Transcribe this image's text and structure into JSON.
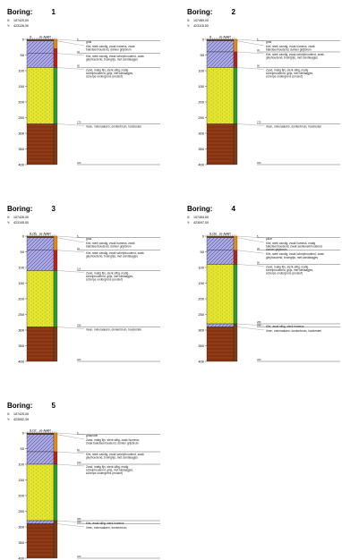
{
  "labels": {
    "boring_prefix": "Boring:",
    "x_prefix": "X:",
    "y_prefix": "Y:",
    "nap_unit": "m-NAP"
  },
  "colors": {
    "clay": "#a9a8e0",
    "clay_hatch": "#3b3b9a",
    "sand": "#e3e52f",
    "sand_dot": "#6b6a20",
    "peat": "#8f3a14",
    "peat_line": "#5a2208",
    "side_green": "#2d9b2d",
    "side_orange": "#e08a1c",
    "side_red": "#b4221a",
    "side_brown": "#7a3a1a",
    "top_soil": "#6a4a2a",
    "line": "#222222"
  },
  "depth_axis": {
    "ticks": [
      "0",
      "50",
      "100",
      "150",
      "200",
      "250",
      "300",
      "350",
      "400"
    ],
    "max_cm": 400
  },
  "borings": [
    {
      "number": "1",
      "x": "107420,00",
      "y": "423126,00",
      "nap_value": "0",
      "layers": [
        {
          "type": "topsoil",
          "from": 0,
          "to": 5,
          "depth_label": "5",
          "description": "gras"
        },
        {
          "type": "clay",
          "from": 5,
          "to": 45,
          "depth_label": "45",
          "description": "Klei, sterk zandig, zwak humeus, zwak baksteenhoudend, donker grijsbruin"
        },
        {
          "type": "clay",
          "from": 45,
          "to": 90,
          "depth_label": "90",
          "description": "Klei, sterk zandig, zwak schelphoudend, zwak gleyhoudend, bruingrijs, met zandlaagjes"
        },
        {
          "type": "sand",
          "from": 90,
          "to": 270,
          "depth_label": "270",
          "description": "Zand, matig fijn, sterk siltig, matig schelphoudend, grijs, met kleilaagjes, scherpe ondergrens (erosief)"
        },
        {
          "type": "peat",
          "from": 270,
          "to": 400,
          "depth_label": "400",
          "description": "Veen, mineraalarm, donkerbruin, houtresten"
        }
      ],
      "side": [
        {
          "color_key": "side_orange",
          "from": 0,
          "to": 30
        },
        {
          "color_key": "side_red",
          "from": 30,
          "to": 90
        },
        {
          "color_key": "side_green",
          "from": 90,
          "to": 270
        },
        {
          "color_key": "side_brown",
          "from": 270,
          "to": 400
        }
      ]
    },
    {
      "number": "2",
      "x": "107469,00",
      "y": "423116,00",
      "nap_value": "0",
      "layers": [
        {
          "type": "topsoil",
          "from": 0,
          "to": 5,
          "depth_label": "5",
          "description": "gras"
        },
        {
          "type": "clay",
          "from": 5,
          "to": 40,
          "depth_label": "40",
          "description": "Klei, sterk zandig, zwak humeus, zwak baksteenhoudend, donker grijsbruin"
        },
        {
          "type": "clay",
          "from": 40,
          "to": 90,
          "depth_label": "90",
          "description": "Klei, sterk zandig, zwak schelphoudend, zwak gleyhoudend, bruingrijs, met zandlaagjes"
        },
        {
          "type": "sand",
          "from": 90,
          "to": 270,
          "depth_label": "270",
          "description": "Zand, matig fijn, sterk siltig, matig schelphoudend, grijs, met kleilaagjes, scherpe ondergrens (erosief)"
        },
        {
          "type": "peat",
          "from": 270,
          "to": 400,
          "depth_label": "400",
          "description": "Veen, mineraalarm, donkerbruin, houtresten"
        }
      ],
      "side": [
        {
          "color_key": "side_orange",
          "from": 0,
          "to": 40
        },
        {
          "color_key": "side_red",
          "from": 40,
          "to": 90
        },
        {
          "color_key": "side_green",
          "from": 90,
          "to": 270
        },
        {
          "color_key": "side_brown",
          "from": 270,
          "to": 400
        }
      ]
    },
    {
      "number": "3",
      "x": "107426,00",
      "y": "423105,00",
      "nap_value": "0,05",
      "layers": [
        {
          "type": "topsoil",
          "from": 0,
          "to": 5,
          "depth_label": "5",
          "description": "gras"
        },
        {
          "type": "clay",
          "from": 5,
          "to": 45,
          "depth_label": "45",
          "description": "Klei, sterk zandig, zwak humeus, zwak baksteenhoudend, donker grijsbruin"
        },
        {
          "type": "clay",
          "from": 45,
          "to": 110,
          "depth_label": "110",
          "description": "Klei, sterk zandig, zwak schelphoudend, zwak gleyhoudend, bruingrijs, met zandlaagjes"
        },
        {
          "type": "sand",
          "from": 110,
          "to": 290,
          "depth_label": "290",
          "description": "Zand, matig fijn, sterk siltig, matig schelphoudend, grijs, met kleilaagjes, scherpe ondergrens (erosief)"
        },
        {
          "type": "peat",
          "from": 290,
          "to": 400,
          "depth_label": "400",
          "description": "Veen, mineraalarm, donkerbruin, houtresten"
        }
      ],
      "side": [
        {
          "color_key": "side_orange",
          "from": 0,
          "to": 45
        },
        {
          "color_key": "side_red",
          "from": 45,
          "to": 110
        },
        {
          "color_key": "side_green",
          "from": 110,
          "to": 290
        },
        {
          "color_key": "side_brown",
          "from": 290,
          "to": 400
        }
      ]
    },
    {
      "number": "4",
      "x": "107454,00",
      "y": "423097,00",
      "nap_value": "0,09",
      "layers": [
        {
          "type": "topsoil",
          "from": 0,
          "to": 5,
          "depth_label": "5",
          "description": "plkar"
        },
        {
          "type": "clay",
          "from": 5,
          "to": 45,
          "depth_label": "45",
          "description": "Klei, sterk zandig, zwak humeus, matig baksteenhoudend, zwak aardewerkhoudend, donker grijsbruin"
        },
        {
          "type": "clay",
          "from": 45,
          "to": 90,
          "depth_label": "90",
          "description": "Klei, sterk zandig, zwak schelphoudend, zwak gleyhoudend, bruingrijs, met zandlaagjes"
        },
        {
          "type": "sand",
          "from": 90,
          "to": 280,
          "depth_label": "280",
          "description": "Zand, matig fijn, sterk siltig, matig schelphoudend, grijs, met kleilaagjes, scherpe ondergrens (erosief)"
        },
        {
          "type": "clay",
          "from": 280,
          "to": 290,
          "depth_label": "290",
          "description": "Klei, zwak siltig, sterk humeus"
        },
        {
          "type": "peat",
          "from": 290,
          "to": 400,
          "depth_label": "400",
          "description": "Veen, mineraalarm, donkerbruin, houtresten"
        }
      ],
      "side": [
        {
          "color_key": "side_orange",
          "from": 0,
          "to": 45
        },
        {
          "color_key": "side_red",
          "from": 45,
          "to": 90
        },
        {
          "color_key": "side_green",
          "from": 90,
          "to": 280
        },
        {
          "color_key": "side_brown",
          "from": 280,
          "to": 400
        }
      ]
    },
    {
      "number": "5",
      "x": "107425,00",
      "y": "423052,39",
      "nap_value": "0,07",
      "layers": [
        {
          "type": "topsoil",
          "from": 0,
          "to": 5,
          "depth_label": "5",
          "description": "graszode"
        },
        {
          "type": "clay",
          "from": 5,
          "to": 60,
          "depth_label": "60",
          "description": "Zand, matig fijn, sterk siltig, zwak humeus, zwak baksteenhoudend, donker grijsbruin"
        },
        {
          "type": "clay",
          "from": 60,
          "to": 100,
          "depth_label": "100",
          "description": "Klei, sterk zandig, zwak schelphoudend, zwak gleyhoudend, bruingrijs, met zandlaagjes"
        },
        {
          "type": "sand",
          "from": 100,
          "to": 280,
          "depth_label": "280",
          "description": "Zand, matig fijn, sterk siltig, matig schelphoudend, grijs, met kleilaagjes, scherpe ondergrens (erosief)"
        },
        {
          "type": "clay",
          "from": 280,
          "to": 290,
          "depth_label": "290",
          "description": "Klei, zwak siltig, sterk humeus"
        },
        {
          "type": "peat",
          "from": 290,
          "to": 400,
          "depth_label": "400",
          "description": "Veen, mineraalarm, donkerbruin"
        }
      ],
      "side": [
        {
          "color_key": "side_orange",
          "from": 0,
          "to": 60
        },
        {
          "color_key": "side_red",
          "from": 60,
          "to": 100
        },
        {
          "color_key": "side_green",
          "from": 100,
          "to": 280
        },
        {
          "color_key": "side_brown",
          "from": 280,
          "to": 400
        }
      ]
    }
  ]
}
